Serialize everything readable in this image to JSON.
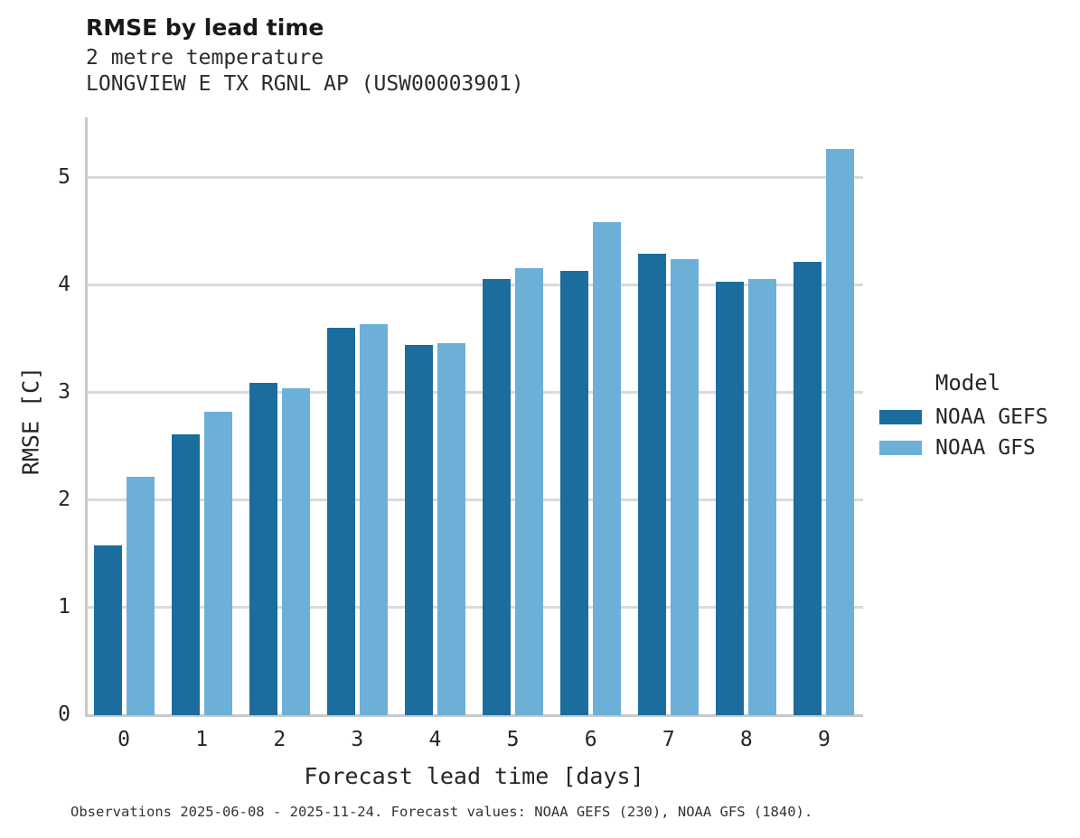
{
  "footer": "Observations 2025-06-08 - 2025-11-24. Forecast values: NOAA GEFS (230), NOAA GFS (1840).",
  "colors": {
    "bar_dark": "#1b6d9e",
    "bar_light": "#6cb0d8",
    "gridline": "#dadada",
    "spine": "#c9c9c9",
    "text": "#262626",
    "background": "#ffffff"
  },
  "chart_data": {
    "type": "bar",
    "title": "RMSE by lead time",
    "subtitles": [
      "2 metre temperature",
      "LONGVIEW E TX RGNL AP (USW00003901)"
    ],
    "categories": [
      "0",
      "1",
      "2",
      "3",
      "4",
      "5",
      "6",
      "7",
      "8",
      "9"
    ],
    "series": [
      {
        "name": "NOAA GEFS",
        "color": "#1b6d9e",
        "values": [
          1.58,
          2.61,
          3.09,
          3.6,
          3.44,
          4.06,
          4.13,
          4.29,
          4.03,
          4.22
        ]
      },
      {
        "name": "NOAA GFS",
        "color": "#6cb0d8",
        "values": [
          2.22,
          2.82,
          3.04,
          3.64,
          3.46,
          4.16,
          4.59,
          4.24,
          4.06,
          5.27
        ]
      }
    ],
    "xlabel": "Forecast lead time [days]",
    "ylabel": "RMSE [C]",
    "ylim": [
      0,
      5.56
    ],
    "yticks": [
      0,
      1,
      2,
      3,
      4,
      5
    ],
    "grid": "horizontal",
    "legend_title": "Model",
    "legend_position": "right"
  }
}
